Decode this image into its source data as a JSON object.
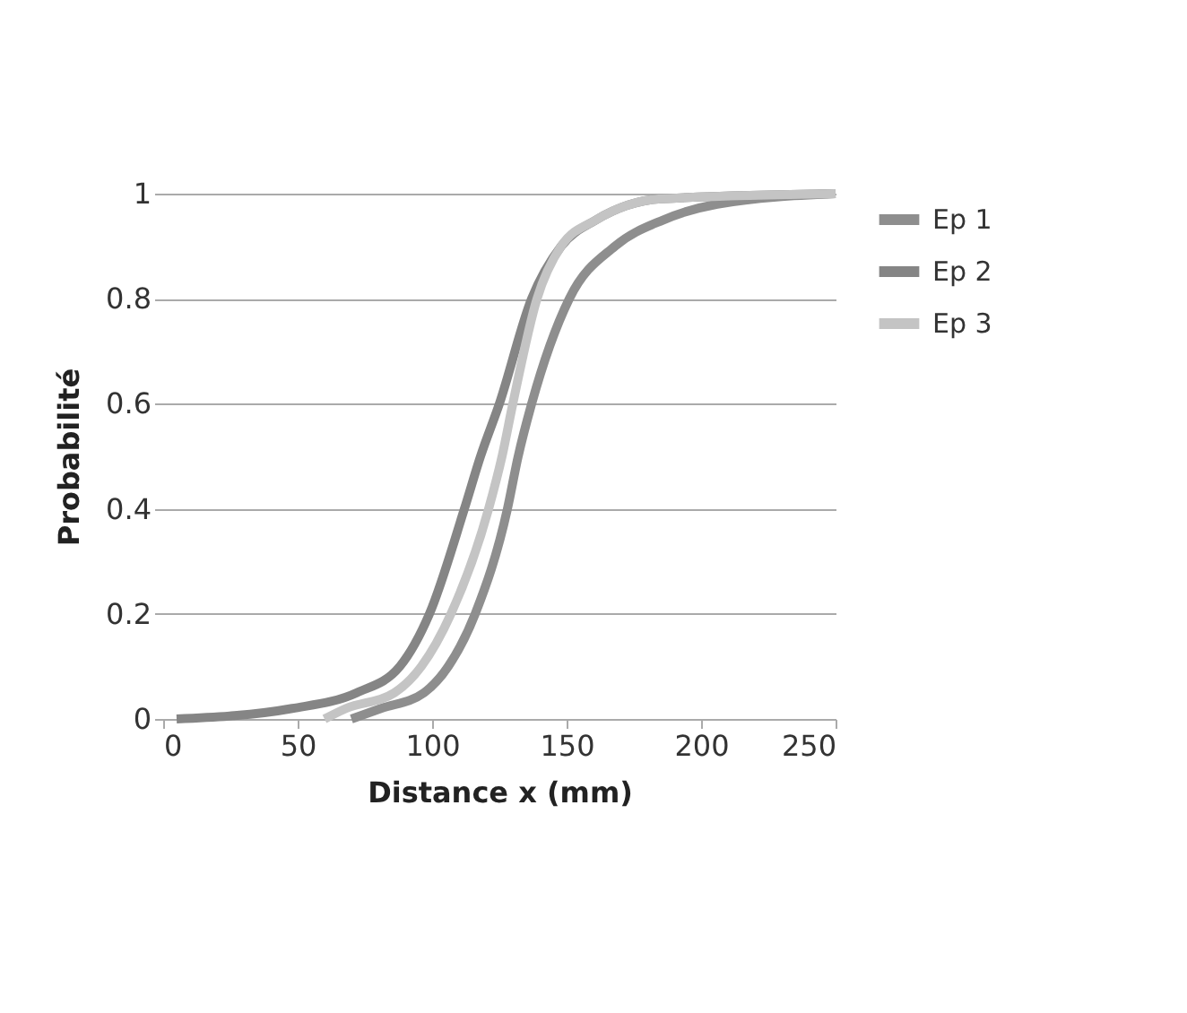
{
  "chart_data": {
    "type": "line",
    "xlabel": "Distance x (mm)",
    "ylabel": "Probabilité",
    "xlim": [
      0,
      250
    ],
    "xticks": [
      0,
      50,
      100,
      150,
      200,
      250
    ],
    "ylim": [
      0,
      1
    ],
    "yticks": [
      0,
      0.2,
      0.4,
      0.6,
      0.8,
      1
    ],
    "grid": "y",
    "legend": "right",
    "marker": "none",
    "line_style": "solid",
    "series": [
      {
        "name": "Ep 1",
        "color": "#8e8e8e",
        "x": [
          70,
          81,
          97,
          106,
          116,
          128,
          132,
          137,
          151,
          168,
          186,
          206,
          250
        ],
        "values": [
          0,
          0.02,
          0.05,
          0.1,
          0.2,
          0.4,
          0.5,
          0.6,
          0.8,
          0.9,
          0.95,
          0.98,
          1
        ]
      },
      {
        "name": "Ep 2",
        "color": "#858585",
        "x": [
          5,
          48,
          72,
          88,
          99,
          112,
          118,
          125,
          137,
          148,
          161,
          185,
          250
        ],
        "values": [
          0,
          0.02,
          0.05,
          0.1,
          0.2,
          0.4,
          0.5,
          0.6,
          0.8,
          0.9,
          0.95,
          0.99,
          1
        ]
      },
      {
        "name": "Ep 3",
        "color": "#c4c4c4",
        "x": [
          60,
          68,
          86,
          96,
          107,
          121,
          126,
          130,
          139,
          148,
          161,
          185,
          250
        ],
        "values": [
          0,
          0.02,
          0.05,
          0.1,
          0.2,
          0.4,
          0.5,
          0.6,
          0.8,
          0.9,
          0.95,
          0.99,
          1
        ]
      }
    ]
  }
}
